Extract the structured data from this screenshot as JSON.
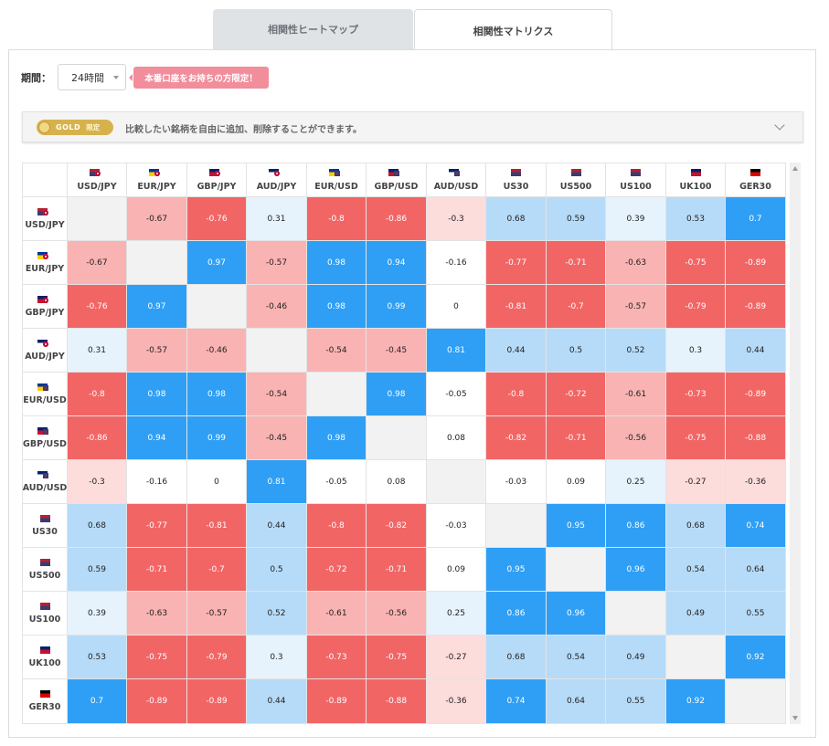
{
  "tabs": [
    {
      "label": "相関性ヒートマップ",
      "active": false
    },
    {
      "label": "相関性マトリクス",
      "active": true
    }
  ],
  "period": {
    "label": "期間：",
    "value": "24時間"
  },
  "promo": {
    "label": "本番口座をお持ちの方限定！"
  },
  "gold": {
    "badge": "GOLD",
    "badge_sub": "限定",
    "description": "比較したい銘柄を自由に追加、削除することができます。"
  },
  "colors": {
    "strong_positive": "#2f9ff5",
    "medium_positive": "#b6dbf8",
    "weak_positive": "#e6f3fd",
    "neutral": "#ffffff",
    "weak_negative": "#fddcdc",
    "medium_negative": "#fab3b3",
    "strong_negative": "#f26565",
    "diagonal": "#f2f2f2"
  },
  "matrix": {
    "symbols": [
      {
        "label": "USD/JPY",
        "icon": "us-jp-flag-icon",
        "flag_a": "us",
        "flag_b": "jp"
      },
      {
        "label": "EUR/JPY",
        "icon": "eu-jp-flag-icon",
        "flag_a": "eu",
        "flag_b": "jp"
      },
      {
        "label": "GBP/JPY",
        "icon": "gb-jp-flag-icon",
        "flag_a": "gb",
        "flag_b": "jp"
      },
      {
        "label": "AUD/JPY",
        "icon": "au-jp-flag-icon",
        "flag_a": "au",
        "flag_b": "jp"
      },
      {
        "label": "EUR/USD",
        "icon": "eu-us-flag-icon",
        "flag_a": "eu",
        "flag_b": "us"
      },
      {
        "label": "GBP/USD",
        "icon": "gb-us-flag-icon",
        "flag_a": "gb",
        "flag_b": "us"
      },
      {
        "label": "AUD/USD",
        "icon": "au-us-flag-icon",
        "flag_a": "au",
        "flag_b": "us"
      },
      {
        "label": "US30",
        "icon": "us-flag-icon",
        "flag_a": "us",
        "flag_b": ""
      },
      {
        "label": "US500",
        "icon": "us-flag-icon",
        "flag_a": "us",
        "flag_b": ""
      },
      {
        "label": "US100",
        "icon": "us-flag-icon",
        "flag_a": "us",
        "flag_b": ""
      },
      {
        "label": "UK100",
        "icon": "gb-flag-icon",
        "flag_a": "gb",
        "flag_b": ""
      },
      {
        "label": "GER30",
        "icon": "de-flag-icon",
        "flag_a": "de",
        "flag_b": ""
      }
    ],
    "values": [
      [
        null,
        -0.67,
        -0.76,
        0.31,
        -0.8,
        -0.86,
        -0.3,
        0.68,
        0.59,
        0.39,
        0.53,
        0.7
      ],
      [
        -0.67,
        null,
        0.97,
        -0.57,
        0.98,
        0.94,
        -0.16,
        -0.77,
        -0.71,
        -0.63,
        -0.75,
        -0.89
      ],
      [
        -0.76,
        0.97,
        null,
        -0.46,
        0.98,
        0.99,
        0,
        -0.81,
        -0.7,
        -0.57,
        -0.79,
        -0.89
      ],
      [
        0.31,
        -0.57,
        -0.46,
        null,
        -0.54,
        -0.45,
        0.81,
        0.44,
        0.5,
        0.52,
        0.3,
        0.44
      ],
      [
        -0.8,
        0.98,
        0.98,
        -0.54,
        null,
        0.98,
        -0.05,
        -0.8,
        -0.72,
        -0.61,
        -0.73,
        -0.89
      ],
      [
        -0.86,
        0.94,
        0.99,
        -0.45,
        0.98,
        null,
        0.08,
        -0.82,
        -0.71,
        -0.56,
        -0.75,
        -0.88
      ],
      [
        -0.3,
        -0.16,
        0,
        0.81,
        -0.05,
        0.08,
        null,
        -0.03,
        0.09,
        0.25,
        -0.27,
        -0.36
      ],
      [
        0.68,
        -0.77,
        -0.81,
        0.44,
        -0.8,
        -0.82,
        -0.03,
        null,
        0.95,
        0.86,
        0.68,
        0.74
      ],
      [
        0.59,
        -0.71,
        -0.7,
        0.5,
        -0.72,
        -0.71,
        0.09,
        0.95,
        null,
        0.96,
        0.54,
        0.64
      ],
      [
        0.39,
        -0.63,
        -0.57,
        0.52,
        -0.61,
        -0.56,
        0.25,
        0.86,
        0.96,
        null,
        0.49,
        0.55
      ],
      [
        0.53,
        -0.75,
        -0.79,
        0.3,
        -0.73,
        -0.75,
        -0.27,
        0.68,
        0.54,
        0.49,
        null,
        0.92
      ],
      [
        0.7,
        -0.89,
        -0.89,
        0.44,
        -0.89,
        -0.88,
        -0.36,
        0.74,
        0.64,
        0.55,
        0.92,
        null
      ]
    ]
  }
}
